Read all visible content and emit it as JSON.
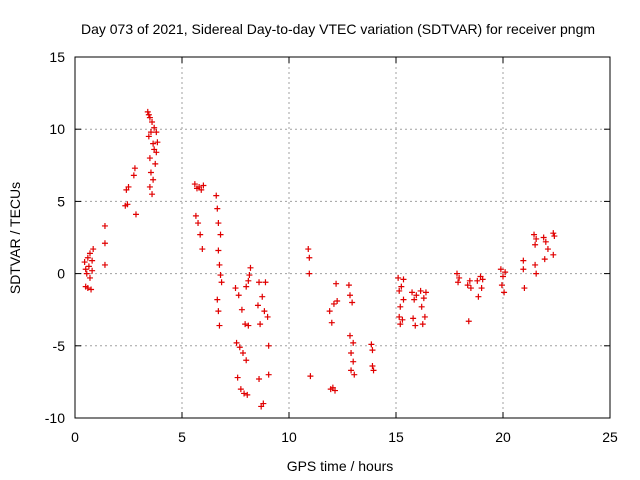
{
  "chart_data": {
    "type": "scatter",
    "title": "Day 073 of 2021, Sidereal Day-to-day VTEC variation (SDTVAR) for receiver pngm",
    "xlabel": "GPS time / hours",
    "ylabel": "SDTVAR / TECUs",
    "xlim": [
      0,
      25
    ],
    "ylim": [
      -10,
      15
    ],
    "xticks": [
      0,
      5,
      10,
      15,
      20,
      25
    ],
    "yticks": [
      -10,
      -5,
      0,
      5,
      10,
      15
    ],
    "xtick_labels": [
      "0",
      "5",
      "10",
      "15",
      "20",
      "25"
    ],
    "ytick_labels": [
      "-10",
      "-5",
      "0",
      "5",
      "10",
      "15"
    ],
    "grid": true,
    "marker": "plus",
    "color": "#e00000",
    "series": [
      {
        "name": "SDTVAR",
        "points": [
          [
            0.45,
            0.8
          ],
          [
            0.5,
            0.3
          ],
          [
            0.5,
            -0.9
          ],
          [
            0.55,
            0.0
          ],
          [
            0.6,
            1.1
          ],
          [
            0.6,
            -1.0
          ],
          [
            0.65,
            0.5
          ],
          [
            0.7,
            -0.3
          ],
          [
            0.7,
            1.4
          ],
          [
            0.75,
            -1.1
          ],
          [
            0.8,
            0.9
          ],
          [
            0.8,
            0.2
          ],
          [
            0.85,
            1.7
          ],
          [
            1.4,
            3.3
          ],
          [
            1.4,
            2.1
          ],
          [
            1.4,
            0.6
          ],
          [
            2.35,
            4.7
          ],
          [
            2.4,
            5.8
          ],
          [
            2.45,
            4.8
          ],
          [
            2.5,
            6.0
          ],
          [
            2.75,
            6.8
          ],
          [
            2.8,
            7.3
          ],
          [
            2.85,
            4.1
          ],
          [
            3.4,
            11.2
          ],
          [
            3.45,
            11.0
          ],
          [
            3.45,
            9.5
          ],
          [
            3.5,
            10.8
          ],
          [
            3.5,
            8.0
          ],
          [
            3.5,
            6.0
          ],
          [
            3.55,
            9.8
          ],
          [
            3.55,
            7.0
          ],
          [
            3.6,
            10.5
          ],
          [
            3.6,
            5.5
          ],
          [
            3.65,
            9.0
          ],
          [
            3.65,
            6.5
          ],
          [
            3.7,
            10.1
          ],
          [
            3.7,
            8.6
          ],
          [
            3.75,
            7.6
          ],
          [
            3.8,
            9.8
          ],
          [
            3.8,
            8.4
          ],
          [
            3.85,
            9.1
          ],
          [
            5.6,
            6.2
          ],
          [
            5.65,
            4.0
          ],
          [
            5.7,
            5.9
          ],
          [
            5.75,
            3.5
          ],
          [
            5.8,
            6.0
          ],
          [
            5.85,
            2.7
          ],
          [
            5.9,
            5.8
          ],
          [
            5.95,
            1.7
          ],
          [
            6.0,
            6.1
          ],
          [
            6.6,
            5.4
          ],
          [
            6.65,
            4.5
          ],
          [
            6.7,
            3.5
          ],
          [
            6.7,
            1.6
          ],
          [
            6.75,
            0.6
          ],
          [
            6.8,
            -0.1
          ],
          [
            6.8,
            2.7
          ],
          [
            6.85,
            -0.6
          ],
          [
            6.65,
            -1.8
          ],
          [
            6.7,
            -2.6
          ],
          [
            6.75,
            -3.6
          ],
          [
            7.5,
            -1.0
          ],
          [
            7.55,
            -4.8
          ],
          [
            7.6,
            -7.2
          ],
          [
            7.65,
            -1.5
          ],
          [
            7.7,
            -5.1
          ],
          [
            7.75,
            -8.0
          ],
          [
            7.8,
            -2.5
          ],
          [
            7.85,
            -5.5
          ],
          [
            7.9,
            -8.3
          ],
          [
            7.95,
            -3.5
          ],
          [
            8.0,
            -0.9
          ],
          [
            8.0,
            -6.0
          ],
          [
            8.05,
            -8.4
          ],
          [
            8.1,
            -0.5
          ],
          [
            8.1,
            -3.6
          ],
          [
            8.15,
            -0.1
          ],
          [
            8.2,
            0.4
          ],
          [
            8.55,
            -2.2
          ],
          [
            8.6,
            -0.6
          ],
          [
            8.6,
            -7.3
          ],
          [
            8.65,
            -3.5
          ],
          [
            8.7,
            -9.2
          ],
          [
            8.75,
            -1.6
          ],
          [
            8.8,
            -9.0
          ],
          [
            8.85,
            -2.6
          ],
          [
            8.9,
            -0.6
          ],
          [
            9.0,
            -3.0
          ],
          [
            9.05,
            -7.0
          ],
          [
            9.05,
            -5.0
          ],
          [
            10.9,
            1.7
          ],
          [
            10.95,
            1.1
          ],
          [
            10.95,
            0.0
          ],
          [
            11.0,
            -7.1
          ],
          [
            11.9,
            -2.6
          ],
          [
            11.95,
            -8.0
          ],
          [
            12.0,
            -3.4
          ],
          [
            12.05,
            -7.9
          ],
          [
            12.1,
            -2.1
          ],
          [
            12.15,
            -8.1
          ],
          [
            12.2,
            -0.7
          ],
          [
            12.25,
            -1.9
          ],
          [
            12.8,
            -0.8
          ],
          [
            12.85,
            -1.5
          ],
          [
            12.85,
            -4.3
          ],
          [
            12.9,
            -5.5
          ],
          [
            12.9,
            -6.7
          ],
          [
            12.95,
            -2.0
          ],
          [
            13.0,
            -4.8
          ],
          [
            13.0,
            -6.1
          ],
          [
            13.05,
            -7.0
          ],
          [
            13.85,
            -4.9
          ],
          [
            13.9,
            -5.3
          ],
          [
            13.9,
            -6.4
          ],
          [
            13.95,
            -6.7
          ],
          [
            15.1,
            -0.3
          ],
          [
            15.15,
            -1.2
          ],
          [
            15.15,
            -3.0
          ],
          [
            15.2,
            -2.3
          ],
          [
            15.2,
            -3.5
          ],
          [
            15.25,
            -0.9
          ],
          [
            15.3,
            -3.2
          ],
          [
            15.35,
            -0.4
          ],
          [
            15.35,
            -1.8
          ],
          [
            15.75,
            -1.3
          ],
          [
            15.8,
            -3.1
          ],
          [
            15.85,
            -1.8
          ],
          [
            15.9,
            -3.6
          ],
          [
            15.95,
            -1.5
          ],
          [
            16.15,
            -1.2
          ],
          [
            16.2,
            -2.3
          ],
          [
            16.25,
            -3.5
          ],
          [
            16.3,
            -1.7
          ],
          [
            16.35,
            -3.0
          ],
          [
            16.4,
            -1.3
          ],
          [
            17.85,
            0.0
          ],
          [
            17.9,
            -0.6
          ],
          [
            17.95,
            -0.3
          ],
          [
            18.35,
            -0.8
          ],
          [
            18.4,
            -3.3
          ],
          [
            18.45,
            -0.5
          ],
          [
            18.5,
            -1.0
          ],
          [
            18.8,
            -0.5
          ],
          [
            18.85,
            -1.6
          ],
          [
            18.95,
            -0.2
          ],
          [
            19.0,
            -1.0
          ],
          [
            19.05,
            -0.4
          ],
          [
            19.9,
            0.3
          ],
          [
            19.95,
            -0.8
          ],
          [
            20.0,
            -0.2
          ],
          [
            20.05,
            -1.3
          ],
          [
            20.1,
            0.1
          ],
          [
            20.95,
            0.9
          ],
          [
            20.95,
            0.3
          ],
          [
            21.0,
            -1.0
          ],
          [
            21.45,
            2.7
          ],
          [
            21.5,
            2.0
          ],
          [
            21.5,
            0.6
          ],
          [
            21.55,
            2.4
          ],
          [
            21.55,
            0.0
          ],
          [
            21.9,
            2.5
          ],
          [
            21.95,
            1.0
          ],
          [
            22.0,
            2.2
          ],
          [
            22.1,
            1.7
          ],
          [
            22.35,
            2.8
          ],
          [
            22.35,
            1.3
          ],
          [
            22.4,
            2.6
          ]
        ]
      }
    ]
  }
}
